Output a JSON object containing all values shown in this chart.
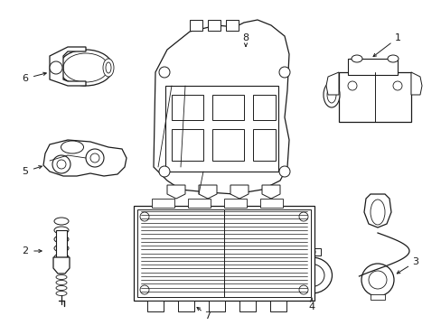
{
  "background_color": "#ffffff",
  "line_color": "#1a1a1a",
  "figsize": [
    4.89,
    3.6
  ],
  "dpi": 100,
  "label_fontsize": 8
}
